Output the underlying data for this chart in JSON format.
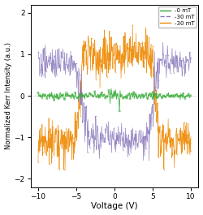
{
  "xlabel": "Voltage (V)",
  "ylabel": "Normalized Kerr Intensity (a.u.)",
  "xlim": [
    -11,
    11
  ],
  "ylim": [
    -2.2,
    2.2
  ],
  "yticks": [
    -2,
    -1,
    0,
    1,
    2
  ],
  "xticks": [
    -10,
    -5,
    0,
    5,
    10
  ],
  "color_green": "#33aa33",
  "color_purple": "#8877bb",
  "color_orange": "#ee8800",
  "bg_color": "#ffffff",
  "seed": 7
}
